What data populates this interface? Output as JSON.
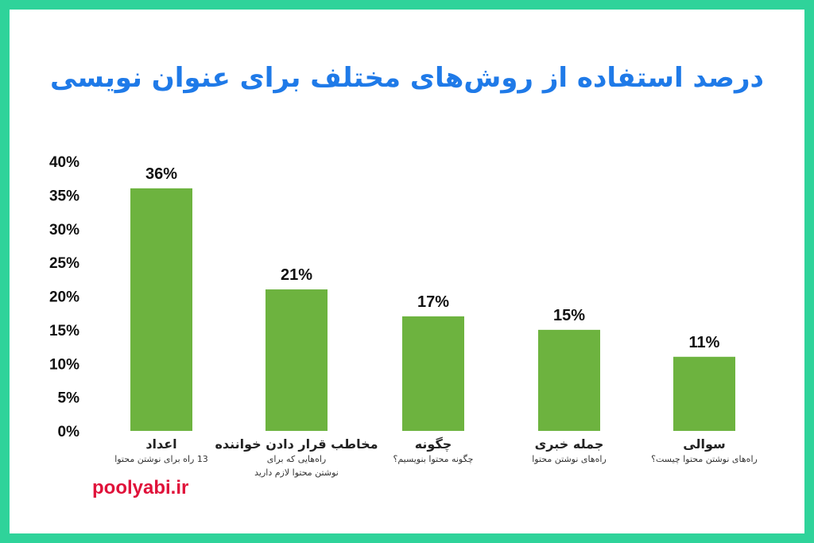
{
  "watermark": "poolyabi.ir",
  "colors": {
    "border": "#2fd39a",
    "title": "#1f7ae8",
    "bar": "#6db33f",
    "watermark": "#e0123a"
  },
  "chart_data": {
    "type": "bar",
    "title": "درصد استفاده از روش‌های مختلف برای عنوان نویسی",
    "xlabel": "",
    "ylabel": "",
    "ylim": [
      0,
      40
    ],
    "yticks": [
      "0%",
      "5%",
      "10%",
      "15%",
      "20%",
      "25%",
      "30%",
      "35%",
      "40%"
    ],
    "grid": false,
    "categories": [
      "اعداد",
      "مخاطب قرار دادن خواننده",
      "چگونه",
      "جمله خبری",
      "سوالی"
    ],
    "subtitles": [
      [
        "13 راه برای نوشتن محتوا"
      ],
      [
        "راه‌هایی که برای",
        "نوشتن محتوا لازم دارید"
      ],
      [
        "چگونه محتوا بنویسیم؟"
      ],
      [
        "راه‌های نوشتن محتوا"
      ],
      [
        "راه‌های نوشتن محتوا چیست؟"
      ]
    ],
    "values": [
      36,
      21,
      17,
      15,
      11
    ],
    "value_labels": [
      "36%",
      "21%",
      "17%",
      "15%",
      "11%"
    ]
  }
}
